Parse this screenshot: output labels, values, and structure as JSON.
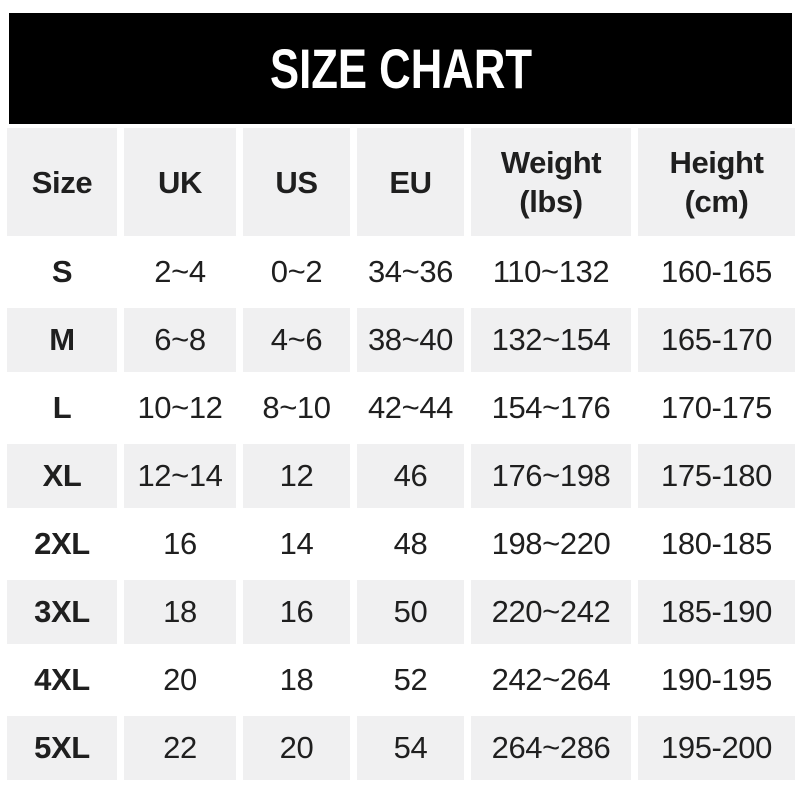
{
  "banner": {
    "title": "SIZE CHART",
    "bg_color": "#000000",
    "text_color": "#ffffff"
  },
  "colors": {
    "row_alt": "#f0f0f1",
    "row_default": "#ffffff",
    "text": "#1f1f1f"
  },
  "header": {
    "size": {
      "label": "Size"
    },
    "uk": {
      "label": "UK"
    },
    "us": {
      "label": "US"
    },
    "eu": {
      "label": "EU"
    },
    "weight": {
      "label": "Weight",
      "sub": "(lbs)"
    },
    "height": {
      "label": "Height",
      "sub": "(cm)"
    }
  },
  "chart_data": {
    "type": "table",
    "title": "SIZE CHART",
    "columns": [
      "Size",
      "UK",
      "US",
      "EU",
      "Weight (lbs)",
      "Height (cm)"
    ],
    "rows": [
      {
        "size": "S",
        "uk": "2~4",
        "us": "0~2",
        "eu": "34~36",
        "weight": "110~132",
        "height": "160-165"
      },
      {
        "size": "M",
        "uk": "6~8",
        "us": "4~6",
        "eu": "38~40",
        "weight": "132~154",
        "height": "165-170"
      },
      {
        "size": "L",
        "uk": "10~12",
        "us": "8~10",
        "eu": "42~44",
        "weight": "154~176",
        "height": "170-175"
      },
      {
        "size": "XL",
        "uk": "12~14",
        "us": "12",
        "eu": "46",
        "weight": "176~198",
        "height": "175-180"
      },
      {
        "size": "2XL",
        "uk": "16",
        "us": "14",
        "eu": "48",
        "weight": "198~220",
        "height": "180-185"
      },
      {
        "size": "3XL",
        "uk": "18",
        "us": "16",
        "eu": "50",
        "weight": "220~242",
        "height": "185-190"
      },
      {
        "size": "4XL",
        "uk": "20",
        "us": "18",
        "eu": "52",
        "weight": "242~264",
        "height": "190-195"
      },
      {
        "size": "5XL",
        "uk": "22",
        "us": "20",
        "eu": "54",
        "weight": "264~286",
        "height": "195-200"
      }
    ]
  }
}
